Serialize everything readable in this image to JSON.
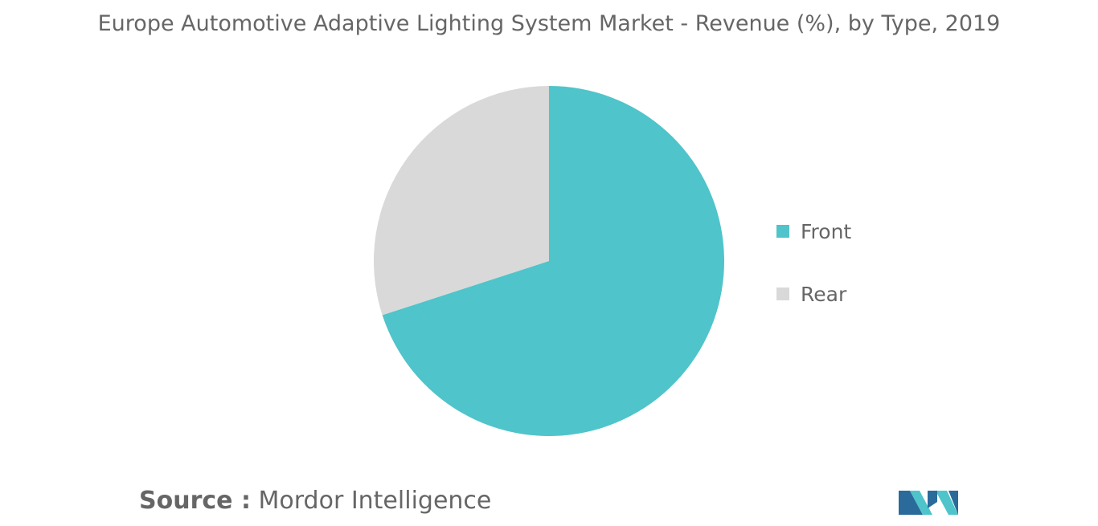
{
  "chart_data": {
    "type": "pie",
    "title": "Europe Automotive Adaptive Lighting System Market - Revenue (%), by Type, 2019",
    "categories": [
      "Front",
      "Rear"
    ],
    "values": [
      70,
      30
    ],
    "colors": [
      "#4FC4CA",
      "#D9D9D9"
    ],
    "legend_position": "right"
  },
  "source": {
    "label": "Source :",
    "value": "Mordor Intelligence"
  },
  "logo": {
    "icon": "mordor-intelligence-logo-icon",
    "colors": [
      "#2A6B9C",
      "#4FC4CA"
    ]
  }
}
